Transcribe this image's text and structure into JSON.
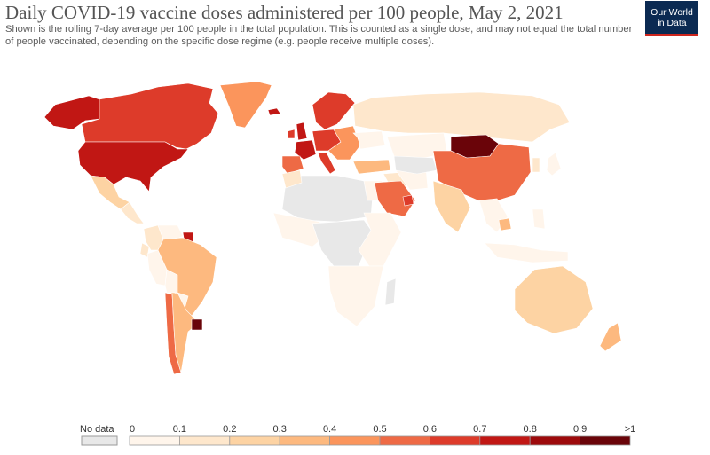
{
  "header": {
    "title": "Daily COVID-19 vaccine doses administered per 100 people, May 2, 2021",
    "subtitle": "Shown is the rolling 7-day average per 100 people in the total population. This is counted as a single dose, and may not equal the total number of people vaccinated, depending on the specific dose regime (e.g. people receive multiple doses)."
  },
  "logo": {
    "line1": "Our World",
    "line2": "in Data"
  },
  "colors": {
    "no_data": "#e8e8e8",
    "ocean": "#ffffff",
    "border": "#ffffff",
    "scale": [
      "#fff5eb",
      "#fee7cc",
      "#fdd3a3",
      "#fdb97f",
      "#fb955c",
      "#ee6a45",
      "#dd3b2a",
      "#c11714",
      "#9d0a0c",
      "#6a0409"
    ],
    "logo_bg": "#0b2a52",
    "logo_accent": "#ce261e"
  },
  "legend": {
    "no_data_label": "No data",
    "ticks": [
      "0",
      "0.1",
      "0.2",
      "0.3",
      "0.4",
      "0.5",
      "0.6",
      "0.7",
      "0.8",
      "0.9",
      ">1"
    ]
  },
  "regions": [
    {
      "name": "alaska",
      "value": 0.75
    },
    {
      "name": "canada",
      "value": 0.65
    },
    {
      "name": "usa",
      "value": 0.75
    },
    {
      "name": "mexico",
      "value": 0.2
    },
    {
      "name": "central-america",
      "value": 0.1
    },
    {
      "name": "greenland",
      "value": 0.45
    },
    {
      "name": "iceland",
      "value": 0.7
    },
    {
      "name": "colombia",
      "value": 0.1
    },
    {
      "name": "venezuela",
      "value": 0.0
    },
    {
      "name": "guyana",
      "value": 0.75
    },
    {
      "name": "ecuador",
      "value": 0.15
    },
    {
      "name": "peru",
      "value": 0.05
    },
    {
      "name": "brazil",
      "value": 0.35
    },
    {
      "name": "bolivia",
      "value": 0.05
    },
    {
      "name": "paraguay",
      "value": 0.05
    },
    {
      "name": "chile",
      "value": 0.55
    },
    {
      "name": "argentina",
      "value": 0.3
    },
    {
      "name": "uruguay",
      "value": 1.2
    },
    {
      "name": "scandinavia",
      "value": 0.6
    },
    {
      "name": "uk",
      "value": 0.75
    },
    {
      "name": "ireland",
      "value": 0.65
    },
    {
      "name": "france",
      "value": 0.7
    },
    {
      "name": "spain-portugal",
      "value": 0.55
    },
    {
      "name": "germany-central-europe",
      "value": 0.65
    },
    {
      "name": "italy",
      "value": 0.6
    },
    {
      "name": "eastern-europe",
      "value": 0.4
    },
    {
      "name": "ukraine",
      "value": 0.05
    },
    {
      "name": "russia",
      "value": 0.1
    },
    {
      "name": "turkey",
      "value": 0.35
    },
    {
      "name": "kazakhstan",
      "value": 0.05
    },
    {
      "name": "mongolia",
      "value": 1.2
    },
    {
      "name": "china",
      "value": 0.55
    },
    {
      "name": "japan",
      "value": 0.05
    },
    {
      "name": "korea",
      "value": 0.1
    },
    {
      "name": "north-africa",
      "value": null
    },
    {
      "name": "morocco",
      "value": 0.1
    },
    {
      "name": "egypt",
      "value": 0.02
    },
    {
      "name": "middle-east",
      "value": 0.1
    },
    {
      "name": "saudi-arabia",
      "value": 0.5
    },
    {
      "name": "uae",
      "value": 0.6
    },
    {
      "name": "iran",
      "value": 0.02
    },
    {
      "name": "central-asia",
      "value": null
    },
    {
      "name": "india",
      "value": 0.2
    },
    {
      "name": "southeast-asia",
      "value": 0.05
    },
    {
      "name": "cambodia",
      "value": 0.35
    },
    {
      "name": "indonesia",
      "value": 0.05
    },
    {
      "name": "philippines",
      "value": 0.05
    },
    {
      "name": "west-africa",
      "value": 0.02
    },
    {
      "name": "central-africa",
      "value": null
    },
    {
      "name": "east-africa",
      "value": 0.02
    },
    {
      "name": "southern-africa",
      "value": 0.02
    },
    {
      "name": "madagascar",
      "value": null
    },
    {
      "name": "australia",
      "value": 0.2
    },
    {
      "name": "new-zealand",
      "value": 0.35
    }
  ]
}
